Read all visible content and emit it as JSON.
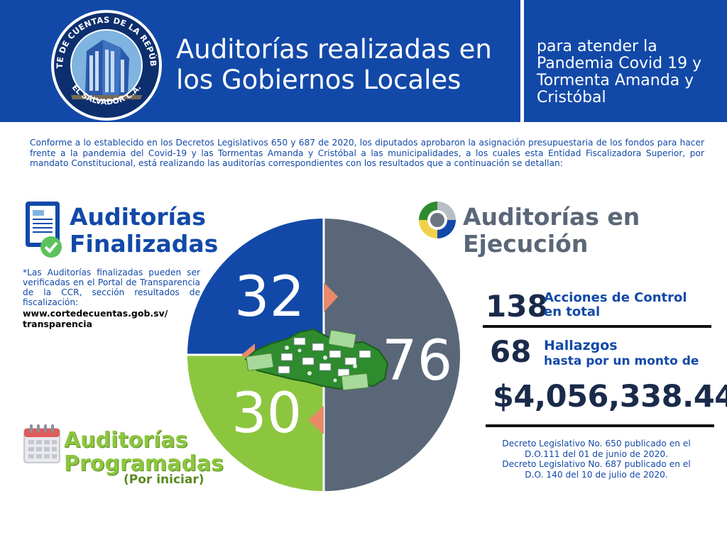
{
  "header": {
    "title_line1": "Auditorías realizadas en",
    "title_line2": "los Gobiernos Locales",
    "subtitle_line1": "para atender la",
    "subtitle_line2": "Pandemia Covid 19 y",
    "subtitle_line3": "Tormenta Amanda y",
    "subtitle_line4": "Cristóbal",
    "logo_text_top": "CORTE DE CUENTAS DE LA REPÚBLICA",
    "logo_text_bottom": "EL SALVADOR C.A."
  },
  "intro": {
    "text": "Conforme a lo establecido en los Decretos Legislativos 650 y 687 de 2020, los diputados aprobaron la asignación presupuestaria de los fondos para hacer frente a la pandemia del Covid-19 y las Tormentas Amanda y Cristóbal a las municipalidades, a los cuales esta Entidad Fiscalizadora Superior, por mandato Constitucional, está realizando las auditorías correspondientes con los resultados que a continuación se detallan:"
  },
  "finalizadas": {
    "title_line1": "Auditorías",
    "title_line2": "Finalizadas",
    "value": "32",
    "note": "*Las Auditorías finalizadas pueden ser verificadas en el Portal de Transparencia de la CCR, sección resultados de fiscalización:",
    "link_line1": "www.cortedecuentas.gob.sv/",
    "link_line2": "transparencia"
  },
  "ejecucion": {
    "title_line1": "Auditorías en",
    "title_line2": "Ejecución",
    "value": "76"
  },
  "programadas": {
    "title_line1": "Auditorías",
    "title_line2": "Programadas",
    "subtitle": "(Por iniciar)",
    "value": "30"
  },
  "stats": {
    "acciones_num": "138",
    "acciones_label_line1": "Acciones de Control",
    "acciones_label_line2": "en total",
    "hallazgos_num": "68",
    "hallazgos_label_line1": "Hallazgos",
    "hallazgos_label_line2": "hasta por un monto de",
    "amount": "$4,056,338.44"
  },
  "decrees": {
    "line1": "Decreto Legislativo No. 650 publicado en el",
    "line2": "D.O.111 del 01 de junio de 2020.",
    "line3": "Decreto Legislativo No. 687 publicado en el",
    "line4": "D.O. 140 del 10 de julio de 2020."
  },
  "colors": {
    "header_blue": "#1249a8",
    "finalizadas_blue": "#1249a8",
    "ejecucion_gray": "#5a6778",
    "programadas_green": "#8cc63f",
    "map_green": "#2e8b2e",
    "arrow_salmon": "#e9896a"
  },
  "icons": {
    "finalizadas": "document-check-icon",
    "ejecucion": "cycle-arrows-icon",
    "programadas": "calendar-icon"
  }
}
